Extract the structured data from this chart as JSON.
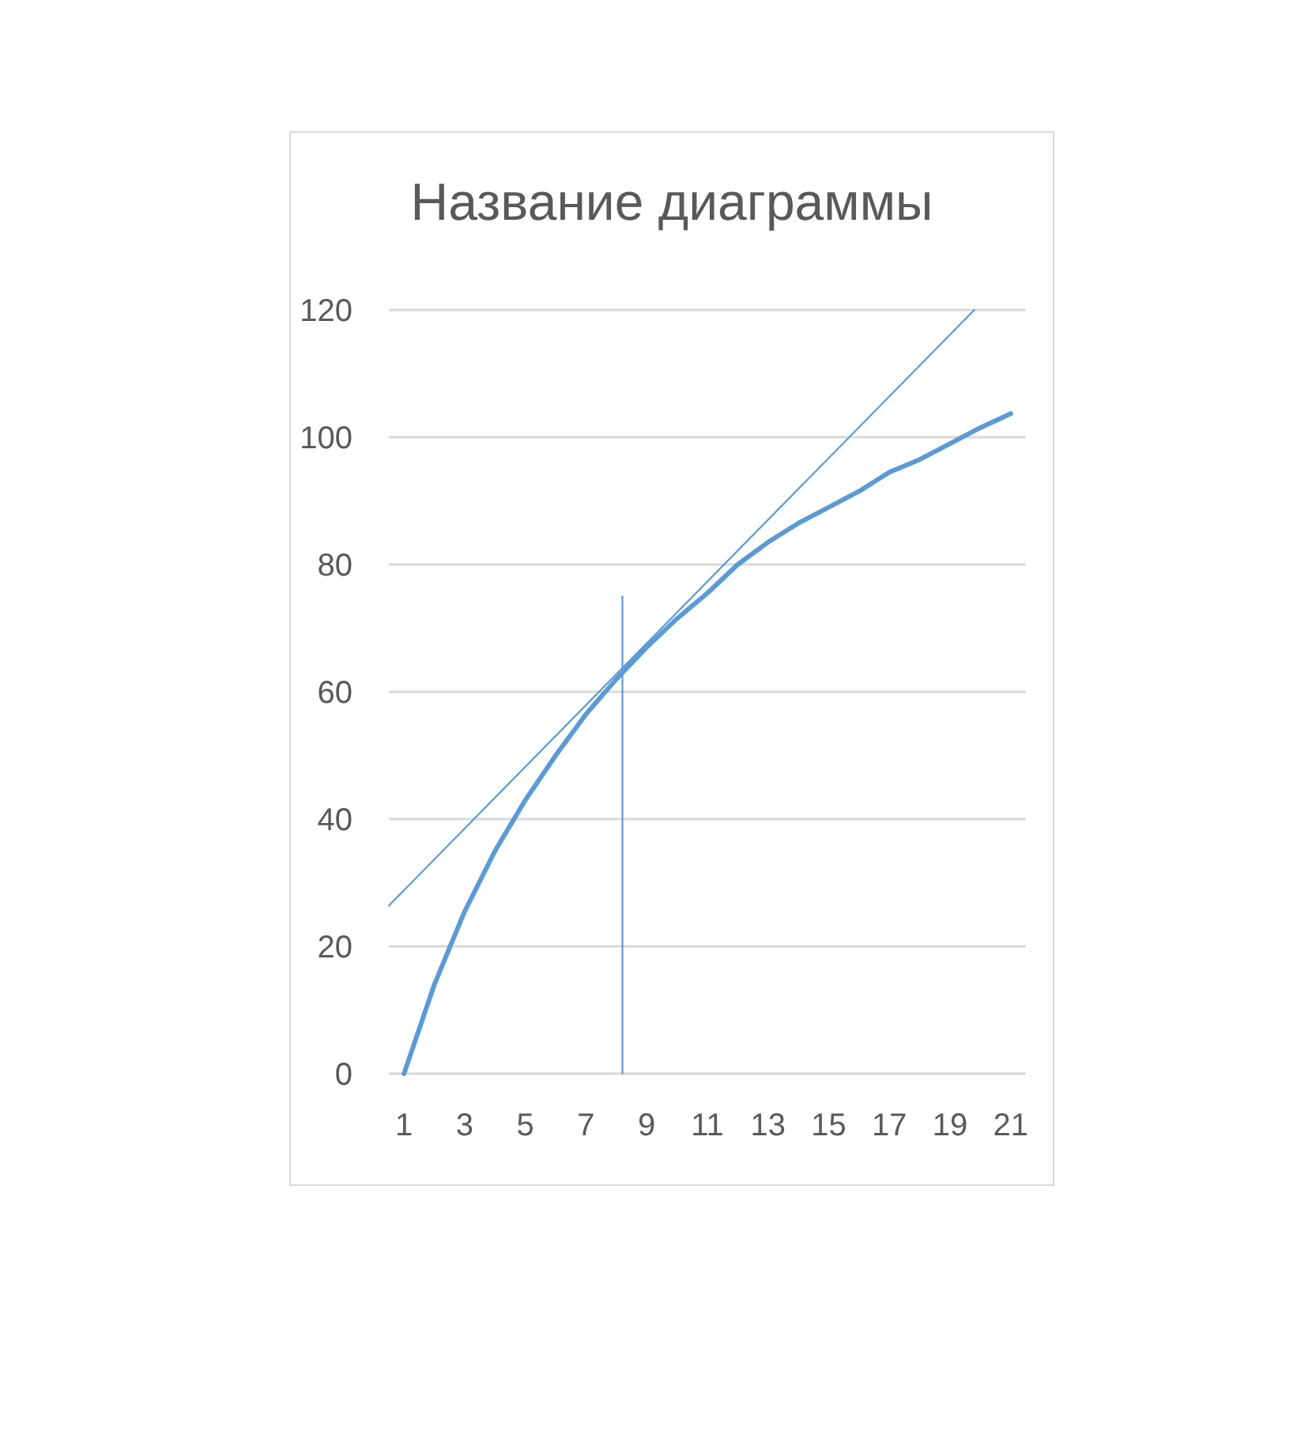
{
  "chart_data": {
    "type": "line",
    "title": "Название диаграммы",
    "xlim": [
      0.5,
      21.5
    ],
    "xticks": [
      1,
      3,
      5,
      7,
      9,
      11,
      13,
      15,
      17,
      19,
      21
    ],
    "ylim": [
      0,
      120
    ],
    "yticks": [
      0,
      20,
      40,
      60,
      80,
      100,
      120
    ],
    "grid": "y",
    "x": [
      1,
      2,
      3,
      4,
      5,
      6,
      7,
      8,
      9,
      10,
      11,
      12,
      13,
      14,
      15,
      16,
      17,
      18,
      19,
      20,
      21
    ],
    "series": [
      {
        "color": "#5b9bd5",
        "values": [
          0,
          14,
          25.5,
          35,
          43,
          50,
          56.5,
          62,
          67,
          71.5,
          75.5,
          80,
          83.5,
          86.5,
          89,
          91.5,
          94.5,
          96.5,
          99,
          101.5,
          103.7
        ]
      },
      {
        "color": "#5b9bd5",
        "x": [
          0.5,
          19.8
        ],
        "values": [
          26.4,
          120
        ]
      },
      {
        "color": "#5b9bd5",
        "x": [
          8.2,
          8.2
        ],
        "values": [
          0,
          75
        ]
      }
    ]
  }
}
